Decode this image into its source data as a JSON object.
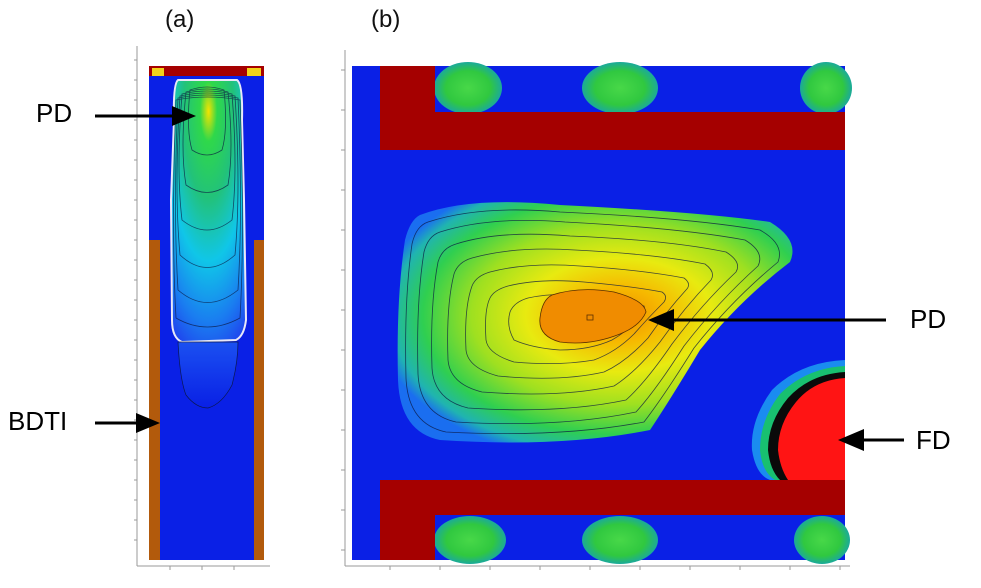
{
  "panels": [
    {
      "id": "a",
      "label": "(a)"
    },
    {
      "id": "b",
      "label": "(b)"
    }
  ],
  "annotations": {
    "a_pd": "PD",
    "a_bdti": "BDTI",
    "b_pd": "PD",
    "b_fd": "FD"
  },
  "colors": {
    "substrate": "#0a20e6",
    "gate": "#a50000",
    "bdti": "#b25a0c",
    "fd": "#ff1414",
    "pd_peak": "#f2a000"
  }
}
